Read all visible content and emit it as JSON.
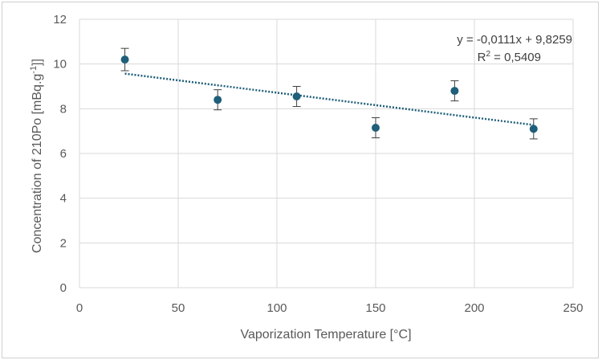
{
  "chart_data": {
    "type": "scatter",
    "xlabel": "Vaporization Temperature  [°C]",
    "ylabel_main": "Concentration of 210Po [mBq.g",
    "ylabel_sup": "-1",
    "ylabel_end": "]]",
    "xlim": [
      0,
      250
    ],
    "ylim": [
      0,
      12
    ],
    "x_ticks": [
      0,
      50,
      100,
      150,
      200,
      250
    ],
    "y_ticks": [
      0,
      2,
      4,
      6,
      8,
      10,
      12
    ],
    "grid": true,
    "legend": "none",
    "series": [
      {
        "x": [
          23,
          70,
          110,
          150,
          190,
          230
        ],
        "y": [
          10.2,
          8.4,
          8.55,
          7.15,
          8.8,
          7.1
        ],
        "error": [
          0.5,
          0.45,
          0.45,
          0.45,
          0.45,
          0.45
        ],
        "color": "#1f5f7a"
      }
    ],
    "trendline": {
      "type": "linear",
      "slope": -0.0111,
      "intercept": 9.8259,
      "x_range": [
        23,
        230
      ],
      "color": "#1f5f7a"
    },
    "annotations": {
      "equation": "y = -0,0111x  + 9,8259",
      "r2_prefix": "R",
      "r2_sup": "2",
      "r2_value": " = 0,5409"
    }
  }
}
